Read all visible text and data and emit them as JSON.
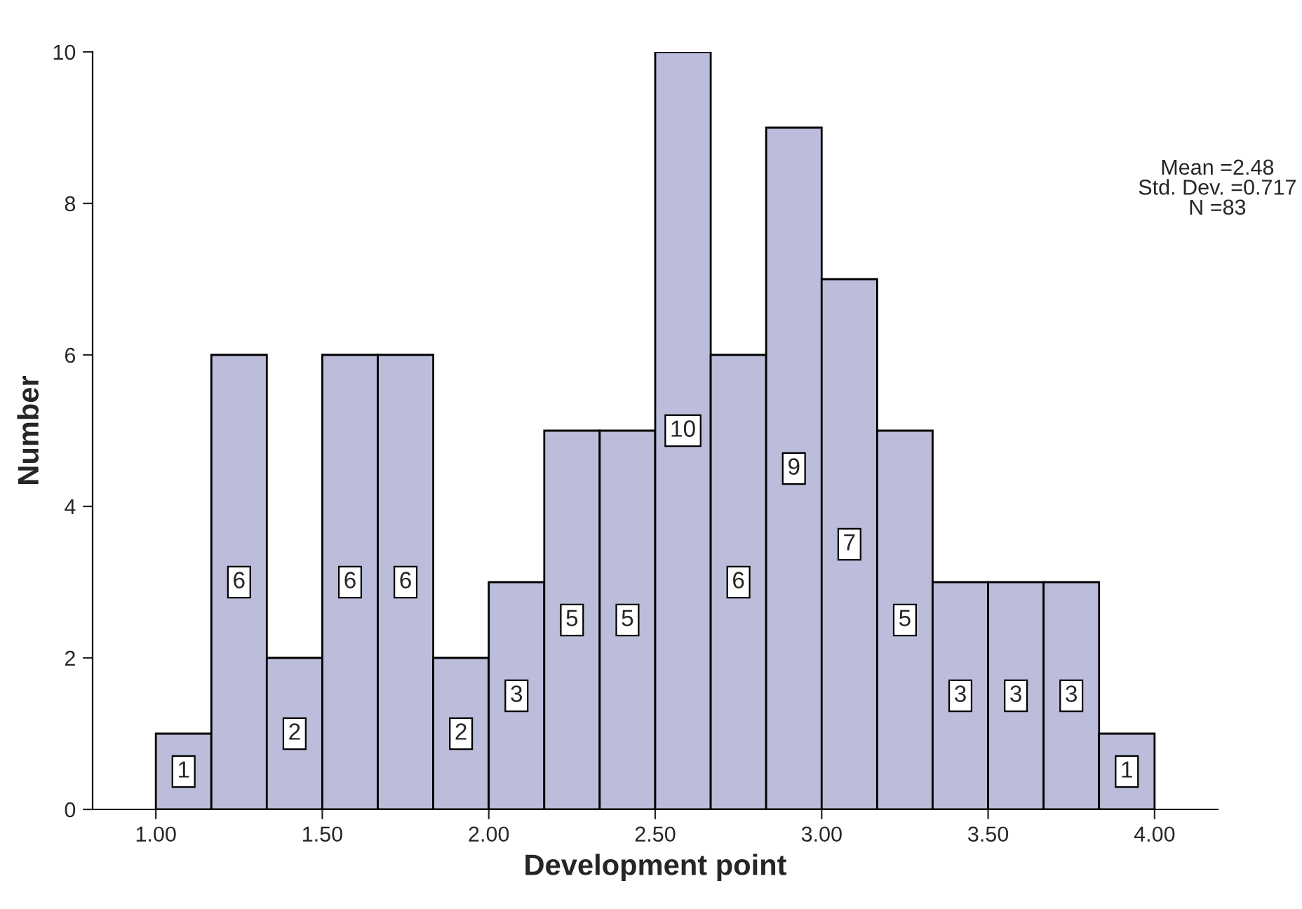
{
  "chart_data": {
    "type": "histogram",
    "xlabel": "Development point",
    "ylabel": "Number",
    "bins": [
      1.0,
      1.1667,
      1.3333,
      1.5,
      1.6667,
      1.8333,
      2.0,
      2.1667,
      2.3333,
      2.5,
      2.6667,
      2.8333,
      3.0,
      3.1667,
      3.3333,
      3.5,
      3.6667,
      3.8333,
      4.0
    ],
    "values": [
      1,
      6,
      2,
      6,
      6,
      2,
      3,
      5,
      5,
      10,
      6,
      9,
      7,
      5,
      3,
      3,
      3,
      1
    ],
    "color": "#bcbcdb",
    "data_labels": true,
    "xlim": [
      0.81,
      4.19
    ],
    "ylim": [
      0,
      10
    ],
    "xticks": [
      {
        "value": 1,
        "label": "1.00"
      },
      {
        "value": 1.5,
        "label": "1.50"
      },
      {
        "value": 2,
        "label": "2.00"
      },
      {
        "value": 2.5,
        "label": "2.50"
      },
      {
        "value": 3,
        "label": "3.00"
      },
      {
        "value": 3.5,
        "label": "3.50"
      },
      {
        "value": 4,
        "label": "4.00"
      }
    ],
    "yticks": [
      0,
      2,
      4,
      6,
      8,
      10
    ],
    "grid": false,
    "annotations": [
      "Mean =2.48",
      "Std. Dev. =0.717",
      "N =83"
    ]
  }
}
